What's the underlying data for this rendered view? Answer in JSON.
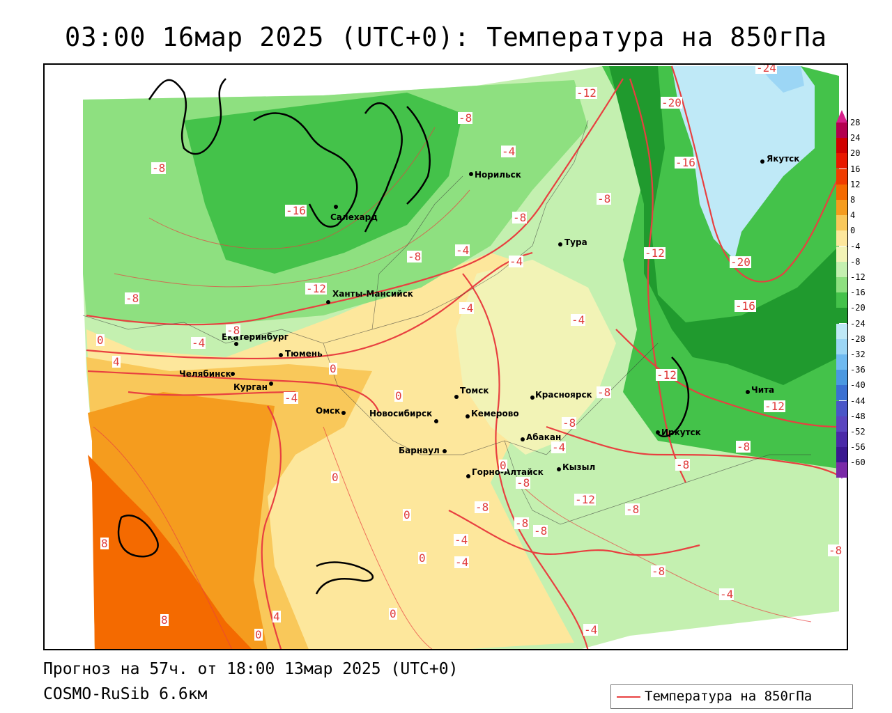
{
  "title": "03:00 16мар 2025 (UTC+0): Температура на 850гПа",
  "forecast_info": "Прогноз на 57ч. от 18:00 13мар 2025 (UTC+0)",
  "model_name": "COSMO-RuSib 6.6км",
  "legend": {
    "line_label": "Температура на 850гПа",
    "line_color": "#e84040"
  },
  "colorbar": {
    "labels": [
      "28",
      "24",
      "20",
      "16",
      "12",
      "8",
      "4",
      "0",
      "-4",
      "-8",
      "-12",
      "-16",
      "-20",
      "-24",
      "-28",
      "-32",
      "-36",
      "-40",
      "-44",
      "-48",
      "-52",
      "-56",
      "-60"
    ],
    "colors": [
      "#b3004f",
      "#d00000",
      "#e81800",
      "#f03c00",
      "#f46a00",
      "#f59c1e",
      "#f9c85a",
      "#fde79c",
      "#f2f3b6",
      "#c4f0b0",
      "#8ee080",
      "#44c24a",
      "#209a2e",
      "#bfe9f7",
      "#9cd6f5",
      "#6fbaf0",
      "#4a98e0",
      "#3a70d2",
      "#4a56c8",
      "#5a46c0",
      "#4a2aa8",
      "#3a1890",
      "#7a2aa8"
    ],
    "top_arrow_color": "#d6208a",
    "bottom_arrow_color": "#9a2ab0"
  },
  "cities": [
    {
      "name": "Якутск"
    },
    {
      "name": "Норильск"
    },
    {
      "name": "Салехард"
    },
    {
      "name": "Тура"
    },
    {
      "name": "Ханты-Мансийск"
    },
    {
      "name": "Екатеринбург"
    },
    {
      "name": "Тюмень"
    },
    {
      "name": "Челябинск"
    },
    {
      "name": "Курган"
    },
    {
      "name": "Омск"
    },
    {
      "name": "Новосибирск"
    },
    {
      "name": "Томск"
    },
    {
      "name": "Кемерово"
    },
    {
      "name": "Красноярск"
    },
    {
      "name": "Абакан"
    },
    {
      "name": "Барнаул"
    },
    {
      "name": "Горно-Алтайск"
    },
    {
      "name": "Кызыл"
    },
    {
      "name": "Иркутск"
    },
    {
      "name": "Чита"
    }
  ],
  "contour_labels": [
    "-24",
    "-20",
    "-16",
    "-12",
    "-8",
    "-4",
    "0",
    "4",
    "8",
    "-16",
    "-12",
    "-8",
    "-4",
    "-8",
    "-4",
    "-8",
    "-12",
    "-8",
    "-16",
    "-20",
    "-12",
    "-8",
    "-4",
    "-8",
    "-12",
    "-4",
    "-8",
    "-8",
    "-16",
    "-20",
    "-12",
    "-8",
    "-8",
    "-4",
    "-8",
    "-12",
    "0",
    "4",
    "0",
    "-4",
    "-8",
    "-8",
    "-8",
    "-8",
    "-4",
    "-4",
    "0",
    "4",
    "0",
    "0",
    "-8",
    "-4",
    "-12",
    "-8",
    "-8",
    "-4",
    "-4",
    "8",
    "8",
    "0",
    "-4"
  ]
}
